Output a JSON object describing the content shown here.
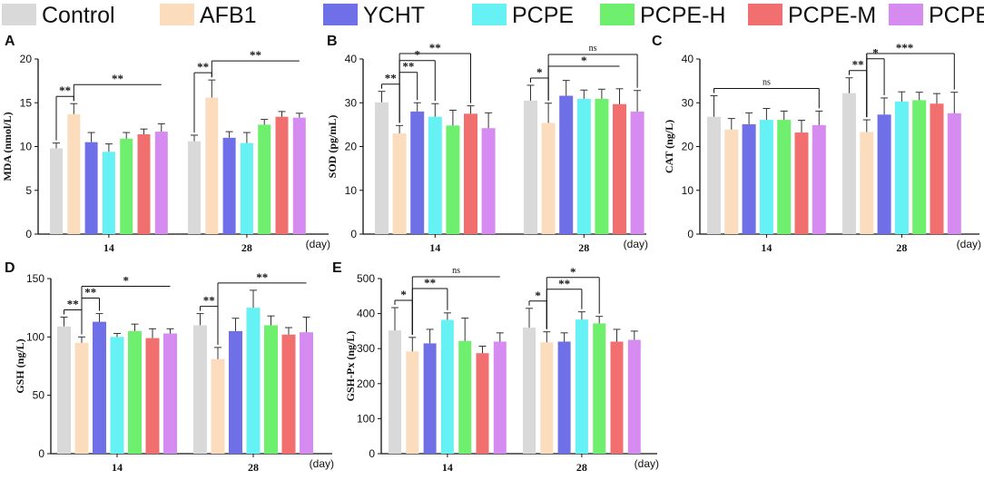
{
  "legend": [
    {
      "label": "Control",
      "color": "#d9d9d9"
    },
    {
      "label": "AFB1",
      "color": "#fbdcbd"
    },
    {
      "label": "YCHT",
      "color": "#6f6fe8"
    },
    {
      "label": "PCPE",
      "color": "#66f2f5"
    },
    {
      "label": "PCPE-H",
      "color": "#6ef06e"
    },
    {
      "label": "PCPE-M",
      "color": "#f26f6f"
    },
    {
      "label": "PCPE-L",
      "color": "#d68bf0"
    }
  ],
  "chart_data": [
    {
      "panel": "A",
      "type": "bar",
      "ylabel": "MDA (nmol/L)",
      "xunit": "(day)",
      "ylim": [
        0,
        20
      ],
      "yticks": [
        0,
        5,
        10,
        15,
        20
      ],
      "categories": [
        "14",
        "28"
      ],
      "series": [
        {
          "name": "Control",
          "values": [
            9.8,
            10.6
          ],
          "errors": [
            0.6,
            0.7
          ]
        },
        {
          "name": "AFB1",
          "values": [
            13.7,
            15.6
          ],
          "errors": [
            1.2,
            2.0
          ]
        },
        {
          "name": "YCHT",
          "values": [
            10.5,
            11.0
          ],
          "errors": [
            1.1,
            0.7
          ]
        },
        {
          "name": "PCPE",
          "values": [
            9.4,
            10.4
          ],
          "errors": [
            0.9,
            1.2
          ]
        },
        {
          "name": "PCPE-H",
          "values": [
            10.9,
            12.5
          ],
          "errors": [
            0.7,
            0.6
          ]
        },
        {
          "name": "PCPE-M",
          "values": [
            11.4,
            13.4
          ],
          "errors": [
            0.6,
            0.6
          ]
        },
        {
          "name": "PCPE-L",
          "values": [
            11.7,
            13.3
          ],
          "errors": [
            0.9,
            0.5
          ]
        }
      ],
      "significance": [
        {
          "group": 0,
          "from": 0,
          "to": 1,
          "label": "**"
        },
        {
          "group": 0,
          "from": 1,
          "to": [
            2,
            6
          ],
          "label": "**"
        },
        {
          "group": 1,
          "from": 0,
          "to": 1,
          "label": "**"
        },
        {
          "group": 1,
          "from": 1,
          "to": [
            2,
            6
          ],
          "label": "**"
        }
      ]
    },
    {
      "panel": "B",
      "type": "bar",
      "ylabel": "SOD (pg/mL)",
      "xunit": "(day)",
      "ylim": [
        0,
        40
      ],
      "yticks": [
        0,
        10,
        20,
        30,
        40
      ],
      "categories": [
        "14",
        "28"
      ],
      "series": [
        {
          "name": "Control",
          "values": [
            30.1,
            30.5
          ],
          "errors": [
            2.5,
            3.5
          ]
        },
        {
          "name": "AFB1",
          "values": [
            23.0,
            25.4
          ],
          "errors": [
            1.8,
            4.5
          ]
        },
        {
          "name": "YCHT",
          "values": [
            28.0,
            31.6
          ],
          "errors": [
            2.0,
            3.5
          ]
        },
        {
          "name": "PCPE",
          "values": [
            26.8,
            30.9
          ],
          "errors": [
            3.0,
            2.0
          ]
        },
        {
          "name": "PCPE-H",
          "values": [
            24.8,
            30.9
          ],
          "errors": [
            3.5,
            2.2
          ]
        },
        {
          "name": "PCPE-M",
          "values": [
            27.5,
            29.7
          ],
          "errors": [
            1.8,
            3.5
          ]
        },
        {
          "name": "PCPE-L",
          "values": [
            24.2,
            28.0
          ],
          "errors": [
            3.5,
            4.8
          ]
        }
      ],
      "significance": [
        {
          "group": 0,
          "from": 0,
          "to": 1,
          "label": "**"
        },
        {
          "group": 0,
          "from": 1,
          "to": 2,
          "label": "**"
        },
        {
          "group": 0,
          "from": 1,
          "to": 3,
          "label": "*"
        },
        {
          "group": 0,
          "from": 1,
          "to": 5,
          "label": "**"
        },
        {
          "group": 1,
          "from": 0,
          "to": 1,
          "label": "*"
        },
        {
          "group": 1,
          "from": 1,
          "to": [
            2,
            5
          ],
          "label": "*"
        },
        {
          "group": 1,
          "from": 1,
          "to": 6,
          "label": "ns"
        }
      ]
    },
    {
      "panel": "C",
      "type": "bar",
      "ylabel": "CAT (ng/L)",
      "xunit": "(day)",
      "ylim": [
        0,
        40
      ],
      "yticks": [
        0,
        10,
        20,
        30,
        40
      ],
      "categories": [
        "14",
        "28"
      ],
      "series": [
        {
          "name": "Control",
          "values": [
            26.8,
            32.2
          ],
          "errors": [
            4.8,
            3.5
          ]
        },
        {
          "name": "AFB1",
          "values": [
            23.9,
            23.3
          ],
          "errors": [
            2.5,
            2.8
          ]
        },
        {
          "name": "YCHT",
          "values": [
            25.1,
            27.3
          ],
          "errors": [
            2.6,
            3.8
          ]
        },
        {
          "name": "PCPE",
          "values": [
            26.1,
            30.3
          ],
          "errors": [
            2.6,
            2.2
          ]
        },
        {
          "name": "PCPE-H",
          "values": [
            26.1,
            30.6
          ],
          "errors": [
            2.0,
            1.8
          ]
        },
        {
          "name": "PCPE-M",
          "values": [
            23.2,
            29.8
          ],
          "errors": [
            2.8,
            2.3
          ]
        },
        {
          "name": "PCPE-L",
          "values": [
            24.9,
            27.6
          ],
          "errors": [
            3.2,
            4.8
          ]
        }
      ],
      "significance": [
        {
          "group": 0,
          "from": 0,
          "to": 6,
          "label": "ns"
        },
        {
          "group": 1,
          "from": 0,
          "to": 1,
          "label": "**"
        },
        {
          "group": 1,
          "from": 1,
          "to": 2,
          "label": "*"
        },
        {
          "group": 1,
          "from": 1,
          "to": [
            3,
            5
          ],
          "label": "**"
        },
        {
          "group": 1,
          "from": 1,
          "to": 6,
          "label": "*"
        }
      ]
    },
    {
      "panel": "D",
      "type": "bar",
      "ylabel": "GSH (ng/L)",
      "xunit": "(day)",
      "ylim": [
        0,
        150
      ],
      "yticks": [
        0,
        50,
        100,
        150
      ],
      "categories": [
        "14",
        "28"
      ],
      "series": [
        {
          "name": "Control",
          "values": [
            109,
            110
          ],
          "errors": [
            8,
            10
          ]
        },
        {
          "name": "AFB1",
          "values": [
            95,
            81
          ],
          "errors": [
            5,
            10
          ]
        },
        {
          "name": "YCHT",
          "values": [
            113,
            105
          ],
          "errors": [
            7,
            11
          ]
        },
        {
          "name": "PCPE",
          "values": [
            100,
            125
          ],
          "errors": [
            3,
            15
          ]
        },
        {
          "name": "PCPE-H",
          "values": [
            105,
            110
          ],
          "errors": [
            6,
            8
          ]
        },
        {
          "name": "PCPE-M",
          "values": [
            99,
            102
          ],
          "errors": [
            8,
            6
          ]
        },
        {
          "name": "PCPE-L",
          "values": [
            103,
            104
          ],
          "errors": [
            4,
            13
          ]
        }
      ],
      "significance": [
        {
          "group": 0,
          "from": 0,
          "to": 1,
          "label": "**"
        },
        {
          "group": 0,
          "from": 1,
          "to": 2,
          "label": "**"
        },
        {
          "group": 0,
          "from": 1,
          "to": [
            3,
            6
          ],
          "label": "*"
        },
        {
          "group": 1,
          "from": 0,
          "to": 1,
          "label": "**"
        },
        {
          "group": 1,
          "from": 1,
          "to": [
            2,
            6
          ],
          "label": "**"
        }
      ]
    },
    {
      "panel": "E",
      "type": "bar",
      "ylabel": "GSH-Px (ng/L)",
      "xunit": "(day)",
      "ylim": [
        0,
        500
      ],
      "yticks": [
        0,
        100,
        200,
        300,
        400,
        500
      ],
      "categories": [
        "14",
        "28"
      ],
      "series": [
        {
          "name": "Control",
          "values": [
            352,
            360
          ],
          "errors": [
            65,
            55
          ]
        },
        {
          "name": "AFB1",
          "values": [
            292,
            318
          ],
          "errors": [
            40,
            30
          ]
        },
        {
          "name": "YCHT",
          "values": [
            315,
            320
          ],
          "errors": [
            40,
            25
          ]
        },
        {
          "name": "PCPE",
          "values": [
            382,
            383
          ],
          "errors": [
            20,
            22
          ]
        },
        {
          "name": "PCPE-H",
          "values": [
            322,
            372
          ],
          "errors": [
            65,
            20
          ]
        },
        {
          "name": "PCPE-M",
          "values": [
            287,
            320
          ],
          "errors": [
            20,
            35
          ]
        },
        {
          "name": "PCPE-L",
          "values": [
            320,
            325
          ],
          "errors": [
            25,
            25
          ]
        }
      ],
      "significance": [
        {
          "group": 0,
          "from": 0,
          "to": 1,
          "label": "*"
        },
        {
          "group": 0,
          "from": 1,
          "to": 3,
          "label": "**"
        },
        {
          "group": 0,
          "from": 1,
          "to": [
            4,
            6
          ],
          "label": "ns"
        },
        {
          "group": 1,
          "from": 0,
          "to": 1,
          "label": "*"
        },
        {
          "group": 1,
          "from": 1,
          "to": 3,
          "label": "**"
        },
        {
          "group": 1,
          "from": 1,
          "to": 4,
          "label": "*"
        }
      ]
    }
  ]
}
